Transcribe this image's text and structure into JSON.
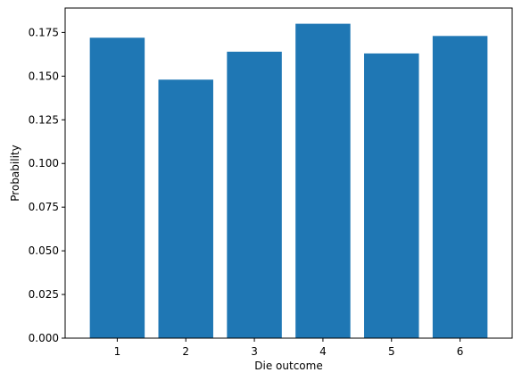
{
  "chart_data": {
    "type": "bar",
    "title": "",
    "xlabel": "Die outcome",
    "ylabel": "Probability",
    "categories": [
      "1",
      "2",
      "3",
      "4",
      "5",
      "6"
    ],
    "values": [
      0.172,
      0.148,
      0.164,
      0.18,
      0.163,
      0.173
    ],
    "ylim": [
      0,
      0.189
    ],
    "yticks": [
      0.0,
      0.025,
      0.05,
      0.075,
      0.1,
      0.125,
      0.15,
      0.175
    ],
    "ytick_labels": [
      "0.000",
      "0.025",
      "0.050",
      "0.075",
      "0.100",
      "0.125",
      "0.150",
      "0.175"
    ],
    "grid": false,
    "legend": "none",
    "bar_color": "#1f77b4"
  }
}
